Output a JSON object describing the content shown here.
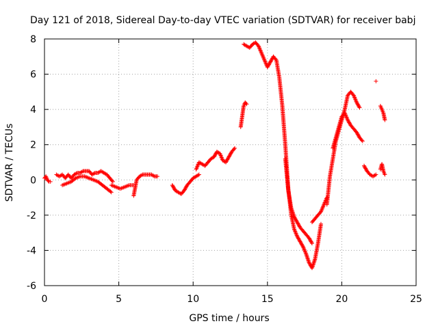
{
  "chart_data": {
    "type": "scatter",
    "title": "Day 121 of 2018, Sidereal Day-to-day VTEC variation (SDTVAR) for receiver babj",
    "xlabel": "GPS time / hours",
    "ylabel": "SDTVAR / TECUs",
    "xlim": [
      0,
      25
    ],
    "ylim": [
      -6,
      8
    ],
    "xticks": [
      0,
      5,
      10,
      15,
      20,
      25
    ],
    "yticks": [
      -6,
      -4,
      -2,
      0,
      2,
      4,
      6,
      8
    ],
    "grid": true,
    "marker": "+",
    "marker_color": "#ff0000",
    "segments": [
      {
        "x": [
          0.0,
          0.1,
          0.2,
          0.3,
          0.4
        ],
        "y": [
          0.1,
          0.2,
          0.0,
          -0.1,
          -0.1
        ]
      },
      {
        "x": [
          0.8,
          1.0,
          1.2,
          1.4,
          1.6,
          1.8,
          2.0,
          2.2,
          2.4,
          2.6,
          2.8,
          3.0,
          3.2,
          3.4,
          3.6,
          3.8,
          4.0,
          4.2,
          4.4,
          4.6
        ],
        "y": [
          0.3,
          0.2,
          0.3,
          0.1,
          0.3,
          0.1,
          0.3,
          0.4,
          0.4,
          0.5,
          0.5,
          0.5,
          0.3,
          0.4,
          0.4,
          0.5,
          0.4,
          0.3,
          0.1,
          -0.1
        ]
      },
      {
        "x": [
          1.2,
          1.5,
          1.8,
          2.1,
          2.4,
          2.7,
          3.0,
          3.3,
          3.6,
          3.9,
          4.2,
          4.5
        ],
        "y": [
          -0.3,
          -0.2,
          -0.1,
          0.1,
          0.2,
          0.2,
          0.1,
          0.0,
          -0.1,
          -0.3,
          -0.5,
          -0.7
        ]
      },
      {
        "x": [
          4.5,
          4.8,
          5.1,
          5.4,
          5.7,
          6.0
        ],
        "y": [
          -0.3,
          -0.4,
          -0.5,
          -0.4,
          -0.3,
          -0.3
        ]
      },
      {
        "x": [
          6.0,
          6.2,
          6.4,
          6.6,
          6.8,
          7.0,
          7.2,
          7.4,
          7.6
        ],
        "y": [
          -0.9,
          0.0,
          0.2,
          0.3,
          0.3,
          0.3,
          0.3,
          0.2,
          0.2
        ]
      },
      {
        "x": [
          8.6,
          8.8,
          9.0,
          9.2,
          9.4,
          9.6,
          9.8,
          10.0,
          10.2,
          10.4
        ],
        "y": [
          -0.3,
          -0.6,
          -0.7,
          -0.8,
          -0.6,
          -0.3,
          -0.1,
          0.1,
          0.2,
          0.3
        ]
      },
      {
        "x": [
          10.2,
          10.4,
          10.6,
          10.8,
          11.0,
          11.2,
          11.4,
          11.6,
          11.8,
          12.0,
          12.2,
          12.4,
          12.6,
          12.8
        ],
        "y": [
          0.6,
          1.0,
          0.9,
          0.8,
          1.0,
          1.2,
          1.3,
          1.6,
          1.5,
          1.1,
          1.0,
          1.3,
          1.6,
          1.8
        ]
      },
      {
        "x": [
          13.2,
          13.3,
          13.4,
          13.5,
          13.6
        ],
        "y": [
          3.0,
          3.6,
          4.2,
          4.4,
          4.3
        ]
      },
      {
        "x": [
          13.4,
          13.6,
          13.8,
          14.0,
          14.2,
          14.4,
          14.6,
          14.8,
          15.0,
          15.2,
          15.4,
          15.6,
          15.8,
          16.0,
          16.2,
          16.4,
          16.6,
          16.8,
          17.0,
          17.2,
          17.4,
          17.6,
          17.8,
          18.0,
          18.2,
          18.4,
          18.6
        ],
        "y": [
          7.7,
          7.6,
          7.5,
          7.7,
          7.8,
          7.6,
          7.2,
          6.8,
          6.4,
          6.7,
          7.0,
          6.8,
          5.8,
          4.2,
          2.0,
          -0.5,
          -2.0,
          -2.8,
          -3.2,
          -3.5,
          -3.8,
          -4.2,
          -4.7,
          -5.0,
          -4.5,
          -3.6,
          -2.5
        ]
      },
      {
        "x": [
          16.2,
          16.4,
          16.6,
          16.8,
          17.0,
          17.2,
          17.4,
          17.6,
          17.8,
          18.0
        ],
        "y": [
          1.2,
          -0.6,
          -1.6,
          -2.1,
          -2.4,
          -2.7,
          -2.9,
          -3.1,
          -3.3,
          -3.6
        ]
      },
      {
        "x": [
          18.0,
          18.2,
          18.4,
          18.6,
          18.8,
          19.0
        ],
        "y": [
          -2.4,
          -2.2,
          -2.0,
          -1.8,
          -1.4,
          -1.0
        ]
      },
      {
        "x": [
          19.0,
          19.2,
          19.4,
          19.6,
          19.8,
          20.0,
          20.2,
          20.4,
          20.6,
          20.8,
          21.0,
          21.2
        ],
        "y": [
          -1.4,
          0.2,
          1.2,
          2.2,
          2.8,
          3.4,
          4.0,
          4.8,
          5.0,
          4.8,
          4.4,
          4.1
        ]
      },
      {
        "x": [
          19.4,
          19.6,
          19.8,
          20.0,
          20.2,
          20.4,
          20.6,
          20.8,
          21.0,
          21.2,
          21.4
        ],
        "y": [
          1.8,
          2.4,
          3.0,
          3.6,
          3.8,
          3.4,
          3.1,
          2.9,
          2.7,
          2.4,
          2.2
        ]
      },
      {
        "x": [
          21.5,
          21.7,
          21.9,
          22.1,
          22.3
        ],
        "y": [
          0.8,
          0.5,
          0.3,
          0.2,
          0.3
        ]
      },
      {
        "x": [
          22.3
        ],
        "y": [
          5.6
        ]
      },
      {
        "x": [
          22.6,
          22.7,
          22.8,
          22.9
        ],
        "y": [
          4.2,
          4.0,
          3.8,
          3.4
        ]
      },
      {
        "x": [
          22.6,
          22.7,
          22.8,
          22.9
        ],
        "y": [
          0.6,
          0.9,
          0.5,
          0.3
        ]
      }
    ]
  }
}
